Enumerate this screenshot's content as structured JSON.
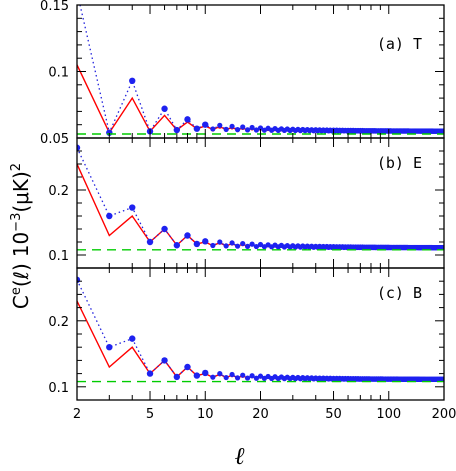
{
  "colors": {
    "observed_line": "#ff0000",
    "observed_points": "#1e22f0",
    "model_dotted": "#2222dd",
    "floor_dashed": "#00cc00",
    "frame": "#000000"
  },
  "chart_data": [
    {
      "type": "line",
      "panel": "(a) T",
      "xscale": "log",
      "xlim": [
        2,
        200
      ],
      "ylim": [
        0.05,
        0.15
      ],
      "yticks": [
        0.05,
        0.1,
        0.15
      ],
      "ytick_labels": [
        "0.05",
        "0.1",
        "0.15"
      ],
      "series": [
        {
          "style": "red-solid",
          "x": [
            2,
            3,
            4,
            5,
            6,
            7,
            8,
            9,
            10,
            20,
            50,
            200
          ],
          "y": [
            0.105,
            0.054,
            0.08,
            0.055,
            0.067,
            0.056,
            0.062,
            0.057,
            0.059,
            0.056,
            0.055,
            0.055
          ]
        },
        {
          "style": "blue-dotted-points",
          "x": [
            2,
            3,
            4,
            5,
            6,
            7,
            8,
            9,
            10,
            20,
            50,
            200
          ],
          "y": [
            0.16,
            0.054,
            0.093,
            0.055,
            0.072,
            0.056,
            0.064,
            0.057,
            0.06,
            0.057,
            0.055,
            0.055
          ]
        },
        {
          "style": "green-dashed",
          "x": [
            2,
            200
          ],
          "y": [
            0.053,
            0.053
          ]
        }
      ]
    },
    {
      "type": "line",
      "panel": "(b) E",
      "xscale": "log",
      "xlim": [
        2,
        200
      ],
      "ylim": [
        0.08,
        0.28
      ],
      "yticks": [
        0.1,
        0.2
      ],
      "ytick_labels": [
        "0.1",
        "0.2"
      ],
      "series": [
        {
          "style": "red-solid",
          "x": [
            2,
            3,
            4,
            5,
            6,
            7,
            8,
            9,
            10,
            20,
            50,
            200
          ],
          "y": [
            0.24,
            0.13,
            0.16,
            0.12,
            0.14,
            0.115,
            0.13,
            0.117,
            0.12,
            0.115,
            0.112,
            0.111
          ]
        },
        {
          "style": "blue-dotted-points",
          "x": [
            2,
            3,
            4,
            5,
            6,
            7,
            8,
            9,
            10,
            20,
            50,
            200
          ],
          "y": [
            0.265,
            0.16,
            0.173,
            0.12,
            0.14,
            0.115,
            0.13,
            0.117,
            0.121,
            0.116,
            0.112,
            0.111
          ]
        },
        {
          "style": "green-dashed",
          "x": [
            2,
            200
          ],
          "y": [
            0.108,
            0.108
          ]
        }
      ]
    },
    {
      "type": "line",
      "panel": "(c) B",
      "xscale": "log",
      "xlim": [
        2,
        200
      ],
      "ylim": [
        0.08,
        0.28
      ],
      "yticks": [
        0.1,
        0.2
      ],
      "ytick_labels": [
        "0.1",
        "0.2"
      ],
      "series": [
        {
          "style": "red-solid",
          "x": [
            2,
            3,
            4,
            5,
            6,
            7,
            8,
            9,
            10,
            20,
            50,
            200
          ],
          "y": [
            0.23,
            0.13,
            0.16,
            0.12,
            0.14,
            0.115,
            0.13,
            0.117,
            0.12,
            0.115,
            0.112,
            0.111
          ]
        },
        {
          "style": "blue-dotted-points",
          "x": [
            2,
            3,
            4,
            5,
            6,
            7,
            8,
            9,
            10,
            20,
            50,
            200
          ],
          "y": [
            0.262,
            0.16,
            0.173,
            0.12,
            0.14,
            0.115,
            0.13,
            0.117,
            0.121,
            0.116,
            0.112,
            0.111
          ]
        },
        {
          "style": "green-dashed",
          "x": [
            2,
            200
          ],
          "y": [
            0.108,
            0.108
          ]
        }
      ]
    }
  ],
  "xaxis": {
    "label": "ℓ",
    "tick_values": [
      2,
      5,
      10,
      20,
      50,
      100,
      200
    ],
    "tick_labels": [
      "2",
      "5",
      "10",
      "20",
      "50",
      "100",
      "200"
    ]
  },
  "yaxis": {
    "label_main": "C",
    "label_sup": "e",
    "label_arg": "(ℓ)",
    "label_units": "10",
    "label_units_exp": "−3",
    "label_units_rest": "(μK)",
    "label_units_sq": "2"
  }
}
